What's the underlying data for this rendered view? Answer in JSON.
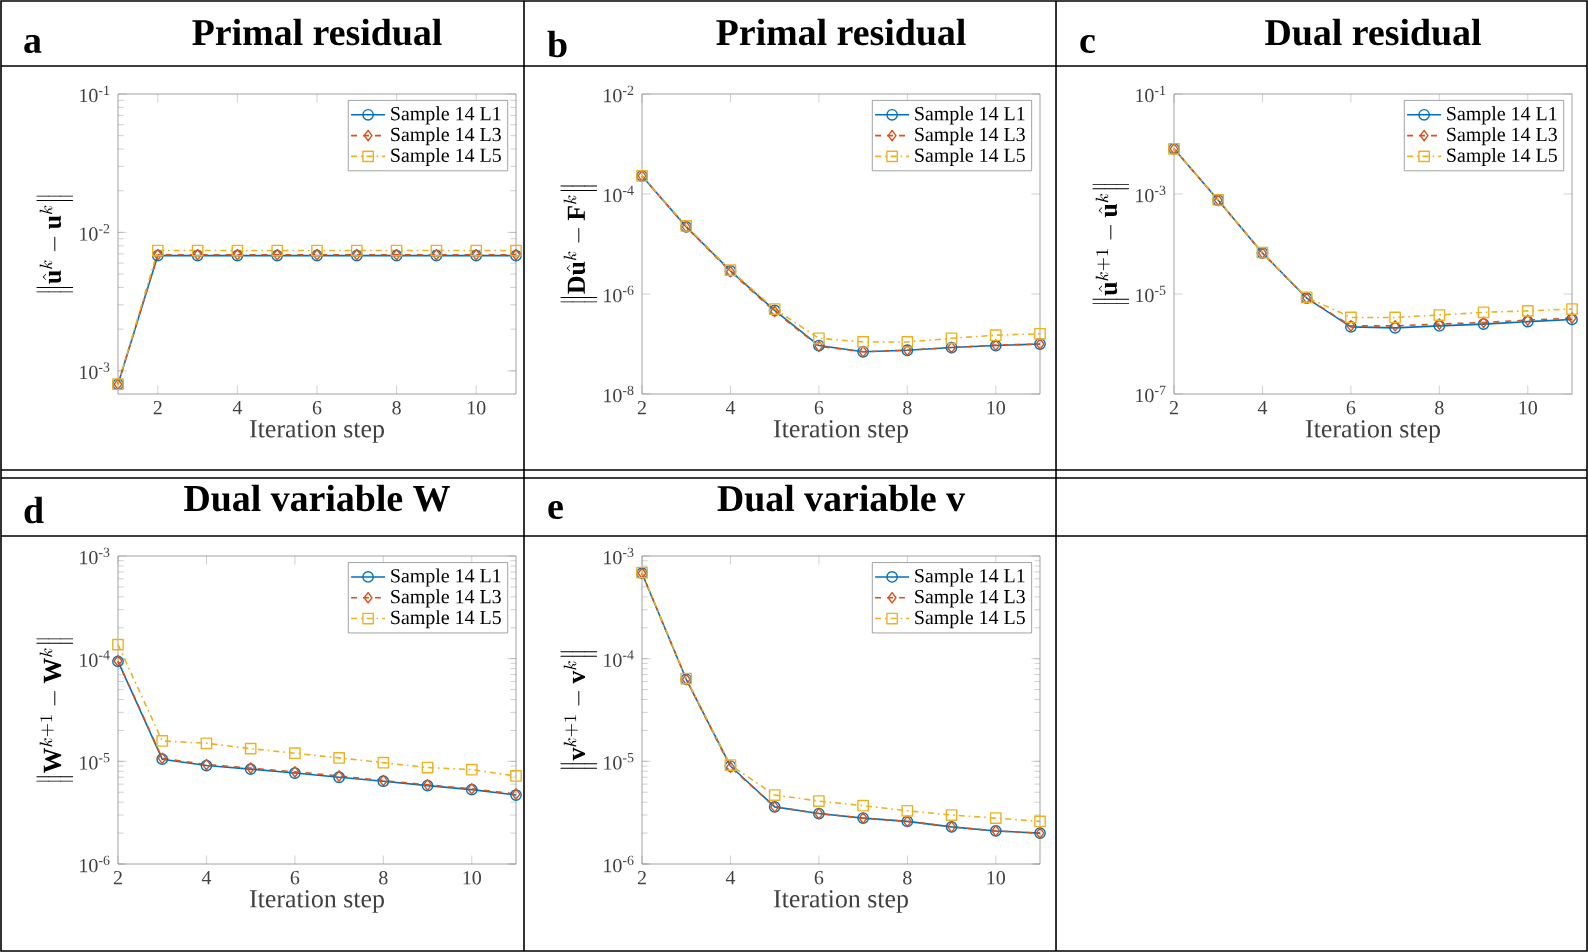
{
  "chart_data": [
    {
      "type": "line",
      "title": "Primal residual",
      "annotations": [
        "a"
      ],
      "xlabel": "Iteration step",
      "ylabel": "\\left\\|\\hat{\\mathbf{u}}^k-\\mathbf{u}^k\\right\\|",
      "log": "y",
      "legend": "top right",
      "x": [
        1,
        2,
        3,
        4,
        5,
        6,
        7,
        8,
        9,
        10,
        11
      ],
      "xlim": [
        1,
        11
      ],
      "xticks": [
        2,
        4,
        6,
        8,
        10
      ],
      "ylim": [
        0.00068,
        0.1
      ],
      "yticks": [
        {
          "value": 0.001,
          "label": "10$^{-3}$"
        },
        {
          "value": 0.01,
          "label": "10$^{-2}$"
        },
        {
          "value": 0.1,
          "label": "10$^{-1}$"
        }
      ],
      "series": [
        {
          "name": "Sample 14 L1",
          "color": "#0072bd",
          "marker": "circle",
          "line_style": "solid",
          "values": [
            0.0008,
            0.0068,
            0.0068,
            0.0068,
            0.0068,
            0.0068,
            0.0068,
            0.0068,
            0.0068,
            0.0068,
            0.0068
          ]
        },
        {
          "name": "Sample 14 L3",
          "color": "#d95319",
          "marker": "diamond",
          "line_style": "dashed",
          "values": [
            0.0008,
            0.0069,
            0.0069,
            0.0069,
            0.0069,
            0.0069,
            0.0069,
            0.0069,
            0.0069,
            0.0069,
            0.0069
          ]
        },
        {
          "name": "Sample 14 L5",
          "color": "#edb120",
          "marker": "square",
          "line_style": "dashdot",
          "values": [
            0.0008,
            0.0074,
            0.0074,
            0.0074,
            0.0074,
            0.0074,
            0.0074,
            0.0074,
            0.0074,
            0.0074,
            0.0074
          ]
        }
      ]
    },
    {
      "type": "line",
      "title": "Primal residual",
      "annotations": [
        "b"
      ],
      "xlabel": "Iteration step",
      "ylabel": "\\left\\|\\mathbf{D}\\hat{\\mathbf{u}}^k-\\mathbf{F}^k\\right\\|",
      "log": "y",
      "legend": "top right",
      "x": [
        2,
        3,
        4,
        5,
        6,
        7,
        8,
        9,
        10,
        11
      ],
      "xlim": [
        2,
        11
      ],
      "xticks": [
        2,
        4,
        6,
        8,
        10
      ],
      "ylim": [
        1e-08,
        0.01
      ],
      "yticks": [
        {
          "value": 1e-08,
          "label": "10$^{-8}$"
        },
        {
          "value": 1e-06,
          "label": "10$^{-6}$"
        },
        {
          "value": 0.0001,
          "label": "10$^{-4}$"
        },
        {
          "value": 0.01,
          "label": "10$^{-2}$"
        }
      ],
      "series": [
        {
          "name": "Sample 14 L1",
          "color": "#0072bd",
          "marker": "circle",
          "line_style": "solid",
          "values": [
            0.00023,
            2.2e-05,
            2.9e-06,
            4.7e-07,
            9.3e-08,
            7e-08,
            7.5e-08,
            8.5e-08,
            9.3e-08,
            1e-07
          ]
        },
        {
          "name": "Sample 14 L3",
          "color": "#d95319",
          "marker": "diamond",
          "line_style": "dashed",
          "values": [
            0.00023,
            2.2e-05,
            2.8e-06,
            4.5e-07,
            9e-08,
            7e-08,
            7.5e-08,
            8.5e-08,
            9.5e-08,
            1e-07
          ]
        },
        {
          "name": "Sample 14 L5",
          "color": "#edb120",
          "marker": "square",
          "line_style": "dashdot",
          "values": [
            0.00023,
            2.3e-05,
            3e-06,
            5e-07,
            1.3e-07,
            1.1e-07,
            1.1e-07,
            1.3e-07,
            1.5e-07,
            1.6e-07
          ]
        }
      ]
    },
    {
      "type": "line",
      "title": "Dual residual",
      "annotations": [
        "c"
      ],
      "xlabel": "Iteration step",
      "ylabel": "\\left\\|\\hat{\\mathbf{u}}^{k+1}-\\hat{\\mathbf{u}}^k\\right\\|",
      "log": "y",
      "legend": "top right",
      "x": [
        2,
        3,
        4,
        5,
        6,
        7,
        8,
        9,
        10,
        11
      ],
      "xlim": [
        2,
        11
      ],
      "xticks": [
        2,
        4,
        6,
        8,
        10
      ],
      "ylim": [
        1e-07,
        0.1
      ],
      "yticks": [
        {
          "value": 1e-07,
          "label": "10$^{-7}$"
        },
        {
          "value": 1e-05,
          "label": "10$^{-5}$"
        },
        {
          "value": 0.001,
          "label": "10$^{-3}$"
        },
        {
          "value": 0.1,
          "label": "10$^{-1}$"
        }
      ],
      "series": [
        {
          "name": "Sample 14 L1",
          "color": "#0072bd",
          "marker": "circle",
          "line_style": "solid",
          "values": [
            0.008,
            0.00075,
            6.6e-05,
            8.3e-06,
            2.2e-06,
            2.1e-06,
            2.3e-06,
            2.5e-06,
            2.8e-06,
            3.1e-06
          ]
        },
        {
          "name": "Sample 14 L3",
          "color": "#d95319",
          "marker": "diamond",
          "line_style": "dashed",
          "values": [
            0.008,
            0.00075,
            6.6e-05,
            8.3e-06,
            2.3e-06,
            2.3e-06,
            2.5e-06,
            2.7e-06,
            3e-06,
            3.3e-06
          ]
        },
        {
          "name": "Sample 14 L5",
          "color": "#edb120",
          "marker": "square",
          "line_style": "dashdot",
          "values": [
            0.008,
            0.00076,
            6.7e-05,
            8.6e-06,
            3.4e-06,
            3.4e-06,
            3.8e-06,
            4.3e-06,
            4.6e-06,
            5e-06
          ]
        }
      ]
    },
    {
      "type": "line",
      "title": "Dual variable W",
      "annotations": [
        "d"
      ],
      "xlabel": "Iteration step",
      "ylabel": "\\left\\|\\mathbf{W}^{k+1}-\\mathbf{W}^k\\right\\|",
      "log": "y",
      "legend": "top right",
      "x": [
        2,
        3,
        4,
        5,
        6,
        7,
        8,
        9,
        10,
        11
      ],
      "xlim": [
        2,
        11
      ],
      "xticks": [
        2,
        4,
        6,
        8,
        10
      ],
      "ylim": [
        1e-06,
        0.001
      ],
      "yticks": [
        {
          "value": 1e-06,
          "label": "10$^{-6}$"
        },
        {
          "value": 1e-05,
          "label": "10$^{-5}$"
        },
        {
          "value": 0.0001,
          "label": "10$^{-4}$"
        },
        {
          "value": 0.001,
          "label": "10$^{-3}$"
        }
      ],
      "series": [
        {
          "name": "Sample 14 L1",
          "color": "#0072bd",
          "marker": "circle",
          "line_style": "solid",
          "values": [
            9.4e-05,
            1.05e-05,
            9.1e-06,
            8.4e-06,
            7.7e-06,
            7e-06,
            6.4e-06,
            5.8e-06,
            5.3e-06,
            4.7e-06
          ]
        },
        {
          "name": "Sample 14 L3",
          "color": "#d95319",
          "marker": "diamond",
          "line_style": "dashed",
          "values": [
            9.5e-05,
            1.07e-05,
            9.3e-06,
            8.6e-06,
            7.9e-06,
            7.2e-06,
            6.5e-06,
            5.9e-06,
            5.4e-06,
            4.8e-06
          ]
        },
        {
          "name": "Sample 14 L5",
          "color": "#edb120",
          "marker": "square",
          "line_style": "dashdot",
          "values": [
            0.000137,
            1.58e-05,
            1.5e-05,
            1.33e-05,
            1.2e-05,
            1.08e-05,
            9.7e-06,
            8.7e-06,
            8.3e-06,
            7.2e-06
          ]
        }
      ]
    },
    {
      "type": "line",
      "title": "Dual variable v",
      "annotations": [
        "e"
      ],
      "xlabel": "Iteration step",
      "ylabel": "\\left\\|\\mathbf{v}^{k+1}-\\mathbf{v}^k\\right\\|",
      "log": "y",
      "legend": "top right",
      "x": [
        2,
        3,
        4,
        5,
        6,
        7,
        8,
        9,
        10,
        11
      ],
      "xlim": [
        2,
        11
      ],
      "xticks": [
        2,
        4,
        6,
        8,
        10
      ],
      "ylim": [
        1e-06,
        0.001
      ],
      "yticks": [
        {
          "value": 1e-06,
          "label": "10$^{-6}$"
        },
        {
          "value": 1e-05,
          "label": "10$^{-5}$"
        },
        {
          "value": 0.0001,
          "label": "10$^{-4}$"
        },
        {
          "value": 0.001,
          "label": "10$^{-3}$"
        }
      ],
      "series": [
        {
          "name": "Sample 14 L1",
          "color": "#0072bd",
          "marker": "circle",
          "line_style": "solid",
          "values": [
            0.00068,
            6.3e-05,
            9e-06,
            3.6e-06,
            3.1e-06,
            2.8e-06,
            2.6e-06,
            2.3e-06,
            2.1e-06,
            2e-06
          ]
        },
        {
          "name": "Sample 14 L3",
          "color": "#d95319",
          "marker": "diamond",
          "line_style": "dashed",
          "values": [
            0.00068,
            6.3e-05,
            8.8e-06,
            3.6e-06,
            3.1e-06,
            2.8e-06,
            2.6e-06,
            2.3e-06,
            2.1e-06,
            2e-06
          ]
        },
        {
          "name": "Sample 14 L5",
          "color": "#edb120",
          "marker": "square",
          "line_style": "dashdot",
          "values": [
            0.00069,
            6.4e-05,
            9.2e-06,
            4.7e-06,
            4.1e-06,
            3.7e-06,
            3.3e-06,
            3e-06,
            2.8e-06,
            2.6e-06
          ]
        }
      ]
    }
  ]
}
